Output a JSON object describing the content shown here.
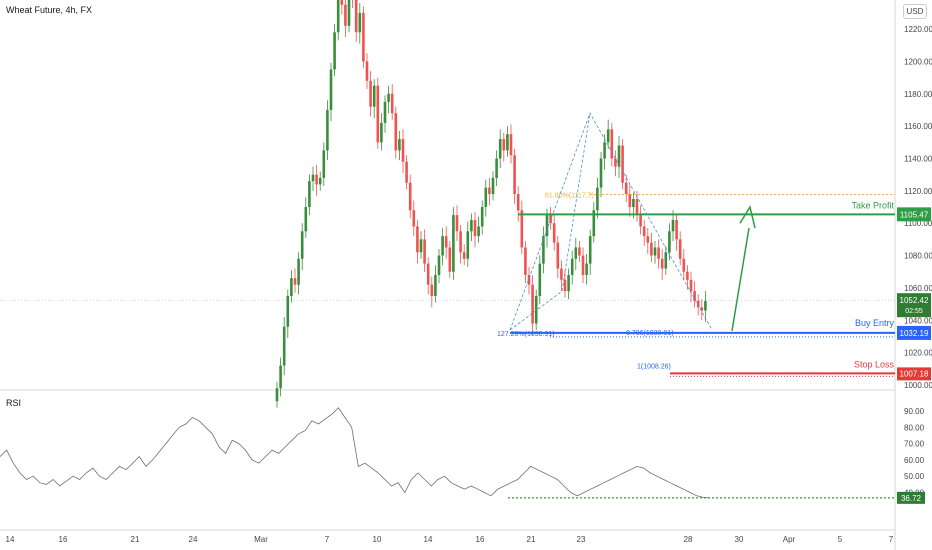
{
  "header": {
    "title": "Wheat Future, 4h, FX",
    "currency": "USD"
  },
  "rsi_panel": {
    "title": "RSI"
  },
  "chart_data": {
    "type": "candlestick",
    "y_ticks": [
      "1220.00",
      "1200.00",
      "1180.00",
      "1160.00",
      "1140.00",
      "1120.00",
      "1100.00",
      "1080.00",
      "1060.00",
      "1040.00",
      "1020.00",
      "1000.00"
    ],
    "rsi_ticks": [
      "90.00",
      "80.00",
      "70.00",
      "60.00",
      "50.00",
      "40.00"
    ],
    "x_ticks": [
      "14",
      "16",
      "21",
      "24",
      "Mar",
      "7",
      "10",
      "14",
      "16",
      "21",
      "23",
      "28",
      "30",
      "Apr",
      "5",
      "7"
    ],
    "current_price": "1052.42",
    "countdown": "02:55",
    "rsi_value": "36.72",
    "levels": [
      {
        "name": "Take Profit",
        "price": 1105.47,
        "label": "1105.47",
        "color": "#2e9e44"
      },
      {
        "name": "Buy Entry",
        "price": 1032.19,
        "label": "1032.19",
        "color": "#2962ff"
      },
      {
        "name": "Stop Loss",
        "price": 1007.18,
        "label": "1007.18",
        "color": "#e53935"
      }
    ],
    "fib_labels": {
      "fib618": "61.80%(1117.7)",
      "fib127": "127.20%(1030.91)",
      "fib786": "0.786(1030.81)",
      "fib1": "1(1008.26)"
    },
    "colors": {
      "up": "#26a69a",
      "up_green": "#388e3c",
      "down": "#ef5350",
      "rsi": "#6a6d78"
    }
  }
}
